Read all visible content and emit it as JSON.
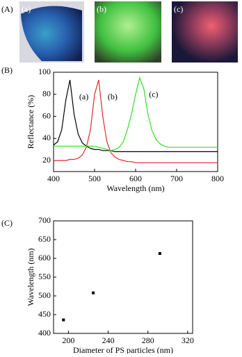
{
  "figure": {
    "panel_labels": [
      "(A)",
      "(B)",
      "(C)"
    ],
    "photo_labels": [
      "(a)",
      "(b)",
      "(c)"
    ]
  },
  "chart_data": [
    {
      "type": "line",
      "xlabel": "Wavelength (nm)",
      "ylabel": "Reflectance (%)",
      "x": [
        400,
        410,
        420,
        430,
        440,
        450,
        460,
        470,
        480,
        490,
        500,
        510,
        520,
        530,
        540,
        550,
        560,
        570,
        580,
        590,
        600,
        610,
        620,
        630,
        640,
        650,
        660,
        670,
        680,
        690,
        700,
        710,
        720,
        730,
        740,
        750,
        760,
        770,
        780,
        790,
        800
      ],
      "series": [
        {
          "name": "(a)",
          "color": "#000000",
          "values": [
            34,
            37,
            48,
            75,
            93,
            62,
            44,
            36,
            33,
            31,
            30,
            30,
            29,
            29,
            29,
            28,
            28,
            28,
            28,
            28,
            28,
            28,
            28,
            28,
            28,
            28,
            28,
            28,
            28,
            28,
            28,
            28,
            28,
            28,
            28,
            28,
            28,
            28,
            28,
            28,
            28
          ]
        },
        {
          "name": "(b)",
          "color": "#e8282a",
          "values": [
            20,
            20,
            20,
            20,
            21,
            21,
            22,
            25,
            32,
            48,
            80,
            93,
            60,
            37,
            27,
            23,
            21,
            20,
            19,
            19,
            18,
            18,
            18,
            18,
            18,
            18,
            18,
            18,
            18,
            18,
            18,
            18,
            18,
            18,
            18,
            18,
            18,
            18,
            18,
            18,
            18
          ]
        },
        {
          "name": "(c)",
          "color": "#33dd22",
          "values": [
            33,
            33,
            33,
            33,
            33,
            33,
            33,
            33,
            33,
            33,
            33,
            32,
            31,
            30,
            29,
            30,
            32,
            37,
            48,
            62,
            80,
            95,
            85,
            62,
            47,
            39,
            35,
            33,
            32,
            32,
            32,
            32,
            32,
            32,
            32,
            32,
            32,
            32,
            32,
            32,
            32
          ]
        }
      ],
      "xlim": [
        400,
        800
      ],
      "xticks": [
        400,
        500,
        600,
        700,
        800
      ],
      "ylim": [
        10,
        100
      ],
      "yticks": [
        20,
        40,
        60,
        80,
        100
      ]
    },
    {
      "type": "scatter",
      "xlabel": "Diameter of PS particles (nm)",
      "ylabel": "Wavelength (nm)",
      "x": [
        195,
        225,
        292
      ],
      "values": [
        436,
        508,
        613
      ],
      "color": "#000000",
      "xlim": [
        185,
        325
      ],
      "xticks": [
        200,
        240,
        280,
        320
      ],
      "ylim": [
        400,
        700
      ],
      "yticks": [
        400,
        450,
        500,
        550,
        600,
        650,
        700
      ]
    }
  ]
}
